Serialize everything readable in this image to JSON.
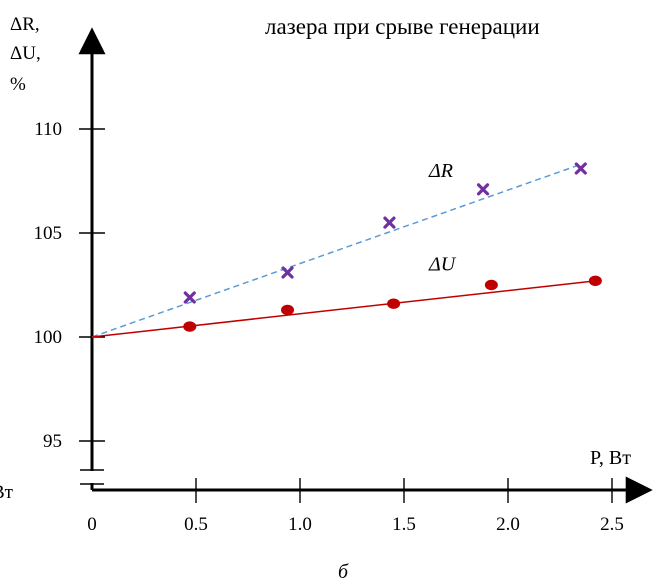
{
  "chart_data": {
    "type": "scatter",
    "title": "лазера при срыве генерации",
    "caption": "б",
    "xlabel": "P, Вт",
    "ylabel_lines": [
      "ΔR,",
      "ΔU,",
      "%"
    ],
    "cut_left_label": "Вт",
    "xlim": [
      0,
      2.8
    ],
    "ylim": [
      92.5,
      111.5
    ],
    "y_break": true,
    "x_ticks": [
      0,
      0.5,
      1.0,
      1.5,
      2.0,
      2.5
    ],
    "x_tick_labels": [
      "0",
      "0.5",
      "1.0",
      "1.5",
      "2.0",
      "2.5"
    ],
    "y_ticks": [
      95,
      100,
      105,
      110
    ],
    "y_tick_labels": [
      "95",
      "100",
      "105",
      "110"
    ],
    "series": [
      {
        "name": "ΔR",
        "marker": "x",
        "color": "#7030a0",
        "points": [
          [
            0.47,
            101.9
          ],
          [
            0.94,
            103.1
          ],
          [
            1.43,
            105.5
          ],
          [
            1.88,
            107.1
          ],
          [
            2.35,
            108.1
          ]
        ],
        "trend": {
          "style": "dashed",
          "color": "#5b9bd5",
          "from": [
            0,
            100.0
          ],
          "to": [
            2.35,
            108.3
          ]
        }
      },
      {
        "name": "ΔU",
        "marker": "circle",
        "color": "#c00000",
        "points": [
          [
            0.47,
            100.5
          ],
          [
            0.94,
            101.3
          ],
          [
            1.45,
            101.6
          ],
          [
            1.92,
            102.5
          ],
          [
            2.42,
            102.7
          ]
        ],
        "trend": {
          "style": "solid",
          "color": "#c00000",
          "from": [
            0,
            100.0
          ],
          "to": [
            2.42,
            102.7
          ]
        }
      }
    ],
    "annotations": [
      {
        "text": "ΔR",
        "x": 1.62,
        "y": 107.7
      },
      {
        "text": "ΔU",
        "x": 1.62,
        "y": 103.2
      }
    ]
  }
}
